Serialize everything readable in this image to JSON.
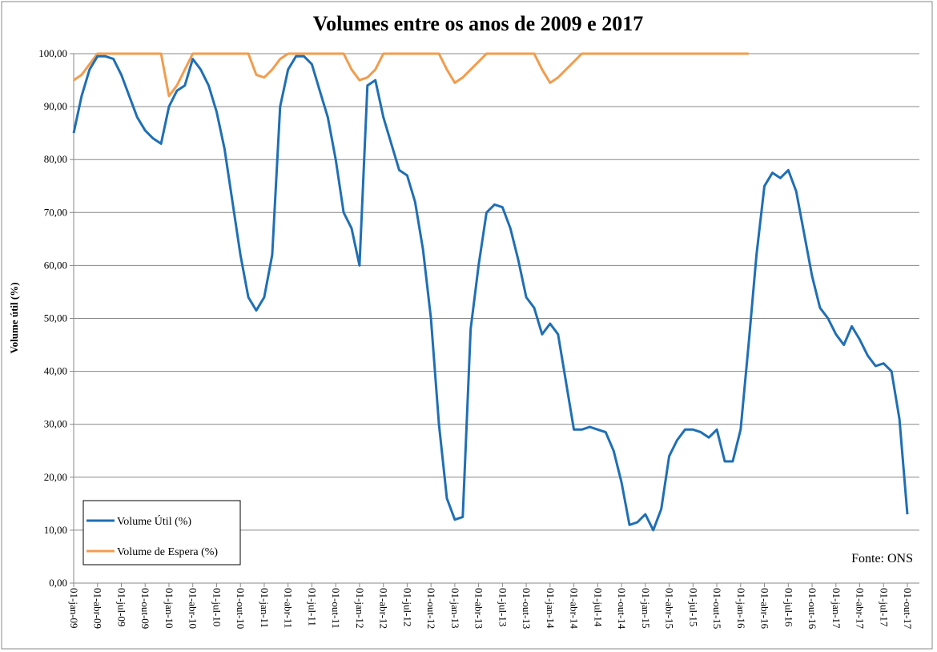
{
  "chart_data": {
    "type": "line",
    "title": "Volumes entre os anos de 2009 e 2017",
    "y_label": "Volume útil (%)",
    "annotation": "Fonte: ONS",
    "x": [
      "2009-01",
      "2009-02",
      "2009-03",
      "2009-04",
      "2009-05",
      "2009-06",
      "2009-07",
      "2009-08",
      "2009-09",
      "2009-10",
      "2009-11",
      "2009-12",
      "2010-01",
      "2010-02",
      "2010-03",
      "2010-04",
      "2010-05",
      "2010-06",
      "2010-07",
      "2010-08",
      "2010-09",
      "2010-10",
      "2010-11",
      "2010-12",
      "2011-01",
      "2011-02",
      "2011-03",
      "2011-04",
      "2011-05",
      "2011-06",
      "2011-07",
      "2011-08",
      "2011-09",
      "2011-10",
      "2011-11",
      "2011-12",
      "2012-01",
      "2012-02",
      "2012-03",
      "2012-04",
      "2012-05",
      "2012-06",
      "2012-07",
      "2012-08",
      "2012-09",
      "2012-10",
      "2012-11",
      "2012-12",
      "2013-01",
      "2013-02",
      "2013-03",
      "2013-04",
      "2013-05",
      "2013-06",
      "2013-07",
      "2013-08",
      "2013-09",
      "2013-10",
      "2013-11",
      "2013-12",
      "2014-01",
      "2014-02",
      "2014-03",
      "2014-04",
      "2014-05",
      "2014-06",
      "2014-07",
      "2014-08",
      "2014-09",
      "2014-10",
      "2014-11",
      "2014-12",
      "2015-01",
      "2015-02",
      "2015-03",
      "2015-04",
      "2015-05",
      "2015-06",
      "2015-07",
      "2015-08",
      "2015-09",
      "2015-10",
      "2015-11",
      "2015-12",
      "2016-01",
      "2016-02",
      "2016-03",
      "2016-04",
      "2016-05",
      "2016-06",
      "2016-07",
      "2016-08",
      "2016-09",
      "2016-10",
      "2016-11",
      "2016-12",
      "2017-01",
      "2017-02",
      "2017-03",
      "2017-04",
      "2017-05",
      "2017-06",
      "2017-07",
      "2017-08",
      "2017-09",
      "2017-10"
    ],
    "series": [
      {
        "name": "Volume Útil (%)",
        "color": "#1f6fb5",
        "values": [
          85,
          92,
          97,
          99.5,
          99.5,
          99,
          96,
          92,
          88,
          85.5,
          84,
          83,
          90,
          93,
          94,
          99,
          97,
          94,
          89,
          82,
          72,
          62,
          54,
          51.5,
          54,
          62,
          90,
          97,
          99.5,
          99.5,
          98,
          93,
          88,
          80,
          70,
          67,
          60,
          94,
          95,
          88,
          83,
          78,
          77,
          72,
          63,
          50,
          30,
          16,
          12,
          12.5,
          48,
          60,
          70,
          71.5,
          71,
          67,
          61,
          54,
          52,
          47,
          49,
          47,
          38,
          29,
          29,
          29.5,
          29,
          28.5,
          25,
          19,
          11,
          11.5,
          13,
          10,
          14,
          24,
          27,
          29,
          29,
          28.5,
          27.5,
          29,
          23,
          23,
          29,
          45,
          62,
          75,
          77.5,
          76.5,
          78,
          74,
          66,
          58,
          52,
          50,
          47,
          45,
          48.5,
          46,
          43,
          41,
          41.5,
          40,
          31,
          13
        ]
      },
      {
        "name": "Volume de Espera (%)",
        "color": "#f39c4c",
        "values": [
          95,
          96,
          98,
          100,
          100,
          100,
          100,
          100,
          100,
          100,
          100,
          100,
          92,
          94,
          97,
          100,
          100,
          100,
          100,
          100,
          100,
          100,
          100,
          96,
          95.5,
          97,
          99,
          100,
          100,
          100,
          100,
          100,
          100,
          100,
          100,
          97,
          95,
          95.5,
          97,
          100,
          100,
          100,
          100,
          100,
          100,
          100,
          100,
          97,
          94.5,
          95.5,
          97,
          98.5,
          100,
          100,
          100,
          100,
          100,
          100,
          100,
          97,
          94.5,
          95.5,
          97,
          98.5,
          100,
          100,
          100,
          100,
          100,
          100,
          100,
          100,
          100,
          100,
          100,
          100,
          100,
          100,
          100,
          100,
          100,
          100,
          100,
          100,
          100,
          100,
          null,
          null,
          null,
          null,
          null,
          null,
          null,
          null,
          null,
          null,
          null,
          null,
          null,
          null,
          null,
          null,
          null,
          null,
          null,
          null
        ]
      }
    ],
    "xticks": [
      {
        "value": "2009-01",
        "label": "01-jan-09"
      },
      {
        "value": "2009-04",
        "label": "01-abr-09"
      },
      {
        "value": "2009-07",
        "label": "01-jul-09"
      },
      {
        "value": "2009-10",
        "label": "01-out-09"
      },
      {
        "value": "2010-01",
        "label": "01-jan-10"
      },
      {
        "value": "2010-04",
        "label": "01-abr-10"
      },
      {
        "value": "2010-07",
        "label": "01-jul-10"
      },
      {
        "value": "2010-10",
        "label": "01-out-10"
      },
      {
        "value": "2011-01",
        "label": "01-jan-11"
      },
      {
        "value": "2011-04",
        "label": "01-abr-11"
      },
      {
        "value": "2011-07",
        "label": "01-jul-11"
      },
      {
        "value": "2011-10",
        "label": "01-out-11"
      },
      {
        "value": "2012-01",
        "label": "01-jan-12"
      },
      {
        "value": "2012-04",
        "label": "01-abr-12"
      },
      {
        "value": "2012-07",
        "label": "01-jul-12"
      },
      {
        "value": "2012-10",
        "label": "01-out-12"
      },
      {
        "value": "2013-01",
        "label": "01-jan-13"
      },
      {
        "value": "2013-04",
        "label": "01-abr-13"
      },
      {
        "value": "2013-07",
        "label": "01-jul-13"
      },
      {
        "value": "2013-10",
        "label": "01-out-13"
      },
      {
        "value": "2014-01",
        "label": "01-jan-14"
      },
      {
        "value": "2014-04",
        "label": "01-abr-14"
      },
      {
        "value": "2014-07",
        "label": "01-jul-14"
      },
      {
        "value": "2014-10",
        "label": "01-out-14"
      },
      {
        "value": "2015-01",
        "label": "01-jan-15"
      },
      {
        "value": "2015-04",
        "label": "01-abr-15"
      },
      {
        "value": "2015-07",
        "label": "01-jul-15"
      },
      {
        "value": "2015-10",
        "label": "01-out-15"
      },
      {
        "value": "2016-01",
        "label": "01-jan-16"
      },
      {
        "value": "2016-04",
        "label": "01-abr-16"
      },
      {
        "value": "2016-07",
        "label": "01-jul-16"
      },
      {
        "value": "2016-10",
        "label": "01-out-16"
      },
      {
        "value": "2017-01",
        "label": "01-jan-17"
      },
      {
        "value": "2017-04",
        "label": "01-abr-17"
      },
      {
        "value": "2017-07",
        "label": "01-jul-17"
      },
      {
        "value": "2017-10",
        "label": "01-out-17"
      }
    ],
    "ylim": [
      0,
      100
    ],
    "yticks": [
      {
        "value": 0,
        "label": "0,00"
      },
      {
        "value": 10,
        "label": "10,00"
      },
      {
        "value": 20,
        "label": "20,00"
      },
      {
        "value": 30,
        "label": "30,00"
      },
      {
        "value": 40,
        "label": "40,00"
      },
      {
        "value": 50,
        "label": "50,00"
      },
      {
        "value": 60,
        "label": "60,00"
      },
      {
        "value": 70,
        "label": "70,00"
      },
      {
        "value": 80,
        "label": "80,00"
      },
      {
        "value": 90,
        "label": "90,00"
      },
      {
        "value": 100,
        "label": "100,00"
      }
    ],
    "grid": true,
    "legend": "lower left"
  }
}
